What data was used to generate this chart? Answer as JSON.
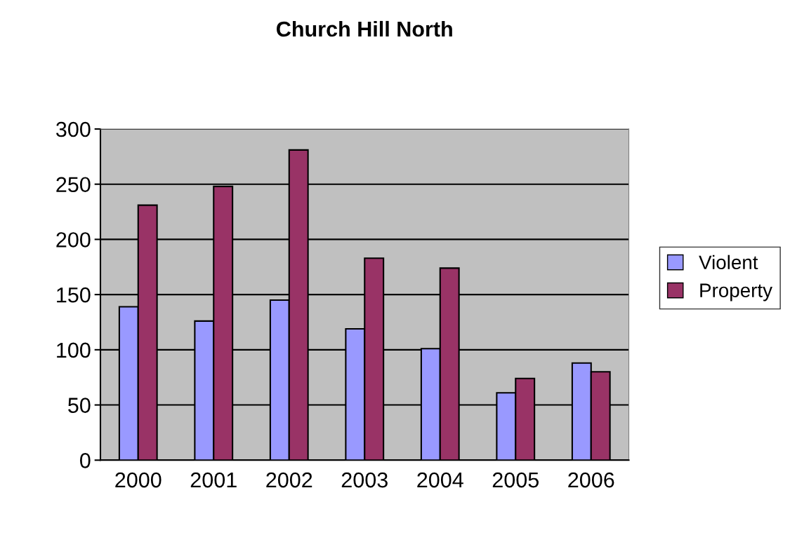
{
  "chart_data": {
    "type": "bar",
    "title": "Church Hill North",
    "categories": [
      "2000",
      "2001",
      "2002",
      "2003",
      "2004",
      "2005",
      "2006"
    ],
    "series": [
      {
        "name": "Violent",
        "color": "#9999ff",
        "values": [
          139,
          126,
          145,
          119,
          101,
          61,
          88
        ]
      },
      {
        "name": "Property",
        "color": "#993366",
        "values": [
          231,
          248,
          281,
          183,
          174,
          74,
          80
        ]
      }
    ],
    "ylim": [
      0,
      300
    ],
    "yticks": [
      0,
      50,
      100,
      150,
      200,
      250,
      300
    ],
    "grid": "y",
    "legend": "right"
  }
}
